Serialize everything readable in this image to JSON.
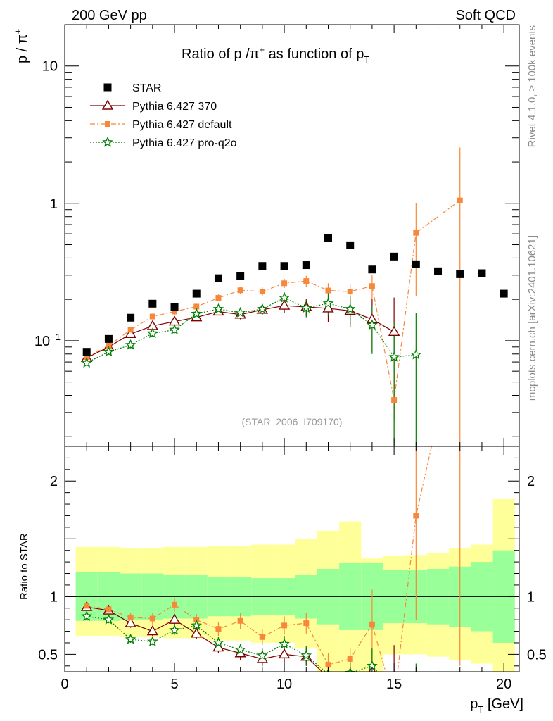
{
  "header": {
    "left": "200 GeV pp",
    "right": "Soft QCD"
  },
  "side_text": {
    "rivet": "Rivet 4.1.0, ≥ 100k events",
    "mcplots": "mcplots.cern.ch [arXiv:2401.10621]"
  },
  "chart_data": {
    "type": "scatter",
    "title": "Ratio of p /π⁺ as function of p_T",
    "title_main": "Ratio of p /π",
    "title_sup": "+",
    "title_tail": " as function of p",
    "title_sub": "T",
    "ylabel_main": "p / π",
    "ylabel_sup": "+",
    "ylabel_ratio": "Ratio to STAR",
    "xlabel_main": "p",
    "xlabel_sub": "T",
    "xlabel_tail": " [GeV]",
    "analysis_tag": "(STAR_2006_I709170)",
    "xlim": [
      0,
      20.7
    ],
    "ylim_main": [
      0.017,
      20
    ],
    "ylim_ratio": [
      0.35,
      2.3
    ],
    "x_ticks": [
      "0",
      "5",
      "10",
      "15",
      "20"
    ],
    "x_tick_values": [
      0,
      5,
      10,
      15,
      20
    ],
    "y_main_ticks": [
      {
        "value": 10,
        "label": "10"
      },
      {
        "value": 1,
        "label": "1"
      },
      {
        "value": 0.1,
        "label": "10",
        "sup": "−1"
      }
    ],
    "y_ratio_ticks": [
      {
        "value": 2,
        "label": "2"
      },
      {
        "value": 1,
        "label": "1"
      },
      {
        "value": 0.5,
        "label": "0.5"
      }
    ],
    "legend": [
      {
        "name": "STAR",
        "marker": "square",
        "color": "#000000"
      },
      {
        "name": "Pythia 6.427 370",
        "marker": "triangle-open",
        "color": "#7f0000"
      },
      {
        "name": "Pythia 6.427 default",
        "marker": "square-small",
        "color": "#f7883a"
      },
      {
        "name": "Pythia 6.427 pro-q2o",
        "marker": "star-open",
        "color": "#007f00"
      }
    ],
    "star": {
      "x": [
        1,
        2,
        3,
        4,
        5,
        6,
        7,
        8,
        9,
        10,
        11,
        12,
        13,
        14,
        15,
        16,
        17,
        18,
        19,
        20
      ],
      "y": [
        0.083,
        0.103,
        0.147,
        0.186,
        0.175,
        0.22,
        0.285,
        0.295,
        0.35,
        0.35,
        0.355,
        0.56,
        0.495,
        0.33,
        0.41,
        0.36,
        0.32,
        0.305,
        0.31,
        0.22
      ],
      "band_edges": [
        0.5,
        1.5,
        2.5,
        3.5,
        4.5,
        5.5,
        6.5,
        7.5,
        8.5,
        9.5,
        10.5,
        11.5,
        12.5,
        13.5,
        14.5,
        15.5,
        16.5,
        17.5,
        18.5,
        19.5,
        20.5
      ],
      "band_stat": [
        0.79,
        0.79,
        0.8,
        0.8,
        0.81,
        0.81,
        0.83,
        0.83,
        0.84,
        0.84,
        0.81,
        0.76,
        0.71,
        0.71,
        0.77,
        0.77,
        0.76,
        0.74,
        0.7,
        0.6
      ],
      "band_stat_up": [
        1.21,
        1.21,
        1.2,
        1.2,
        1.19,
        1.19,
        1.17,
        1.17,
        1.16,
        1.16,
        1.19,
        1.24,
        1.29,
        1.29,
        1.23,
        1.23,
        1.24,
        1.26,
        1.3,
        1.4
      ],
      "band_tot": [
        0.66,
        0.66,
        0.65,
        0.65,
        0.64,
        0.64,
        0.62,
        0.62,
        0.6,
        0.6,
        0.55,
        0.35,
        0.28,
        0.35,
        0.5,
        0.5,
        0.48,
        0.45,
        0.42,
        0.28
      ],
      "band_tot_up": [
        1.43,
        1.43,
        1.42,
        1.42,
        1.43,
        1.43,
        1.44,
        1.44,
        1.45,
        1.45,
        1.5,
        1.57,
        1.65,
        1.33,
        1.35,
        1.36,
        1.38,
        1.42,
        1.45,
        1.85
      ]
    },
    "series": [
      {
        "name": "Pythia 6.427 370",
        "x": [
          1,
          2,
          3,
          4,
          5,
          6,
          7,
          8,
          9,
          10,
          11,
          12,
          13,
          14,
          15
        ],
        "y": [
          0.075,
          0.09,
          0.112,
          0.128,
          0.138,
          0.148,
          0.163,
          0.155,
          0.168,
          0.18,
          0.176,
          0.172,
          0.165,
          0.143,
          0.116
        ],
        "err": [
          0.003,
          0.004,
          0.005,
          0.006,
          0.007,
          0.008,
          0.01,
          0.012,
          0.015,
          0.02,
          0.025,
          0.035,
          0.04,
          0.06,
          0.09
        ],
        "ratio": [
          0.91,
          0.88,
          0.77,
          0.7,
          0.8,
          0.68,
          0.56,
          0.51,
          0.46,
          0.5,
          0.48,
          0.3,
          0.33,
          0.35,
          0.28
        ],
        "ratio_err": [
          0.03,
          0.03,
          0.04,
          0.04,
          0.05,
          0.05,
          0.05,
          0.06,
          0.06,
          0.07,
          0.08,
          0.1,
          0.1,
          0.2,
          0.3
        ]
      },
      {
        "name": "Pythia 6.427 default",
        "x": [
          1,
          2,
          3,
          4,
          5,
          6,
          7,
          8,
          9,
          10,
          11,
          12,
          13,
          14,
          15,
          16,
          18
        ],
        "y": [
          0.076,
          0.092,
          0.12,
          0.15,
          0.163,
          0.177,
          0.205,
          0.233,
          0.228,
          0.262,
          0.272,
          0.232,
          0.228,
          0.25,
          0.037,
          0.61,
          1.05
        ],
        "err": [
          0.003,
          0.004,
          0.005,
          0.007,
          0.008,
          0.009,
          0.012,
          0.015,
          0.016,
          0.02,
          0.025,
          0.03,
          0.03,
          0.05,
          0.02,
          0.4,
          1.5
        ],
        "ratio": [
          0.92,
          0.89,
          0.82,
          0.81,
          0.93,
          0.8,
          0.72,
          0.79,
          0.65,
          0.75,
          0.77,
          0.41,
          0.46,
          0.76,
          0.09,
          1.7,
          3.4
        ],
        "ratio_err": [
          0.03,
          0.03,
          0.04,
          0.05,
          0.06,
          0.05,
          0.06,
          0.07,
          0.07,
          0.08,
          0.09,
          0.1,
          0.1,
          0.3,
          0.1,
          0.9,
          3.0
        ]
      },
      {
        "name": "Pythia 6.427 pro-q2o",
        "x": [
          1,
          2,
          3,
          4,
          5,
          6,
          7,
          8,
          9,
          10,
          11,
          12,
          13,
          14,
          15,
          16
        ],
        "y": [
          0.069,
          0.083,
          0.093,
          0.113,
          0.12,
          0.157,
          0.17,
          0.16,
          0.17,
          0.205,
          0.173,
          0.187,
          0.17,
          0.13,
          0.076,
          0.079
        ],
        "err": [
          0.003,
          0.004,
          0.005,
          0.006,
          0.007,
          0.008,
          0.01,
          0.012,
          0.015,
          0.02,
          0.025,
          0.035,
          0.04,
          0.05,
          0.06,
          0.08
        ],
        "ratio": [
          0.83,
          0.8,
          0.63,
          0.61,
          0.71,
          0.75,
          0.6,
          0.54,
          0.49,
          0.59,
          0.49,
          0.33,
          0.34,
          0.4,
          0.19,
          0.22
        ],
        "ratio_err": [
          0.03,
          0.03,
          0.03,
          0.03,
          0.04,
          0.05,
          0.05,
          0.05,
          0.06,
          0.07,
          0.08,
          0.1,
          0.1,
          0.15,
          0.15,
          0.2
        ]
      }
    ]
  }
}
